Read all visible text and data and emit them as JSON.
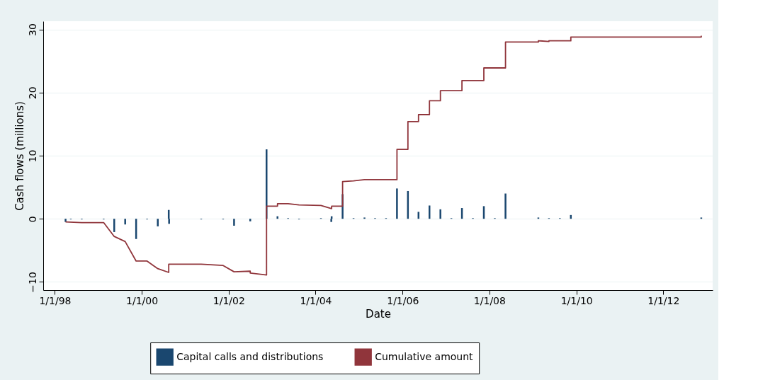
{
  "chart_data": {
    "type": "bar",
    "xlabel": "Date",
    "ylabel": "Cash flows (millions)",
    "xlim": [
      "1997-10-25",
      "2013-01-20"
    ],
    "ylim": [
      -11.3,
      31.3
    ],
    "xticks": [
      {
        "value": "1998-01-01",
        "label": "1/1/98"
      },
      {
        "value": "2000-01-01",
        "label": "1/1/00"
      },
      {
        "value": "2002-01-01",
        "label": "1/1/02"
      },
      {
        "value": "2004-01-01",
        "label": "1/1/04"
      },
      {
        "value": "2006-01-01",
        "label": "1/1/06"
      },
      {
        "value": "2008-01-01",
        "label": "1/1/08"
      },
      {
        "value": "2010-01-01",
        "label": "1/1/10"
      },
      {
        "value": "2012-01-01",
        "label": "1/1/12"
      }
    ],
    "yticks": [
      -10,
      0,
      10,
      20,
      30
    ],
    "grid": "y",
    "legend": "bottom",
    "series": [
      {
        "name": "Capital calls and distributions",
        "color": "#1a476f",
        "x": [
          "1998-04-01",
          "1998-05-15",
          "1998-08-15",
          "1999-02-15",
          "1999-05-15",
          "1999-08-15",
          "1999-11-15",
          "2000-02-15",
          "2000-05-15",
          "2000-08-15",
          "2000-08-18",
          "2001-05-15",
          "2001-11-15",
          "2002-02-15",
          "2002-07-01",
          "2002-11-15",
          "2003-02-15",
          "2003-05-15",
          "2003-08-15",
          "2004-02-15",
          "2004-05-12",
          "2004-05-15",
          "2004-08-15",
          "2004-11-15",
          "2005-02-15",
          "2005-05-15",
          "2005-08-15",
          "2005-11-15",
          "2006-02-15",
          "2006-05-15",
          "2006-08-15",
          "2006-11-15",
          "2007-02-15",
          "2007-05-15",
          "2007-08-15",
          "2007-11-15",
          "2008-02-15",
          "2008-05-15",
          "2009-02-15",
          "2009-05-15",
          "2009-08-15",
          "2009-11-15",
          "2012-11-15"
        ],
        "values": [
          -0.5,
          -0.1,
          -0.1,
          -0.1,
          -2.1,
          -0.9,
          -3.2,
          -0.1,
          -1.2,
          1.4,
          -0.8,
          -0.1,
          -0.1,
          -1.1,
          -0.4,
          11.0,
          0.4,
          0.1,
          -0.1,
          0.1,
          -0.5,
          0.4,
          3.9,
          0.1,
          0.2,
          0.1,
          0.1,
          4.8,
          4.4,
          1.1,
          2.1,
          1.5,
          0.1,
          1.7,
          0.1,
          2.0,
          0.1,
          4.0,
          0.2,
          0.1,
          0.1,
          0.6,
          0.2
        ]
      },
      {
        "name": "Cumulative amount",
        "type": "line",
        "color": "#90353b",
        "x": [
          "1998-04-01",
          "1998-08-15",
          "1999-02-15",
          "1999-05-15",
          "1999-08-15",
          "1999-11-15",
          "2000-02-15",
          "2000-05-15",
          "2000-08-15",
          "2000-08-15",
          "2001-05-15",
          "2001-11-15",
          "2002-02-15",
          "2002-07-01",
          "2002-07-01",
          "2002-11-15",
          "2002-11-15",
          "2003-02-15",
          "2003-02-15",
          "2003-05-15",
          "2003-08-15",
          "2004-02-15",
          "2004-05-15",
          "2004-05-15",
          "2004-08-15",
          "2004-08-15",
          "2004-11-15",
          "2005-02-15",
          "2005-11-15",
          "2005-11-15",
          "2006-02-15",
          "2006-02-15",
          "2006-05-15",
          "2006-05-15",
          "2006-08-15",
          "2006-08-15",
          "2006-11-15",
          "2006-11-15",
          "2007-05-15",
          "2007-05-15",
          "2007-11-15",
          "2007-11-15",
          "2008-05-15",
          "2008-05-15",
          "2009-02-15",
          "2009-02-15",
          "2009-05-15",
          "2009-05-15",
          "2009-11-15",
          "2009-11-15",
          "2012-11-15",
          "2012-11-15"
        ],
        "values": [
          -0.5,
          -0.6,
          -0.6,
          -2.8,
          -3.6,
          -6.7,
          -6.7,
          -7.9,
          -8.5,
          -7.2,
          -7.2,
          -7.4,
          -8.4,
          -8.3,
          -8.6,
          -8.9,
          2.0,
          2.0,
          2.4,
          2.4,
          2.2,
          2.1,
          1.6,
          2.0,
          2.0,
          5.9,
          6.0,
          6.2,
          6.2,
          11.0,
          11.0,
          15.4,
          15.4,
          16.5,
          16.5,
          18.7,
          18.7,
          20.3,
          20.3,
          21.9,
          21.9,
          23.9,
          23.9,
          28.0,
          28.0,
          28.2,
          28.1,
          28.2,
          28.2,
          28.8,
          28.8,
          29.0
        ]
      }
    ]
  }
}
